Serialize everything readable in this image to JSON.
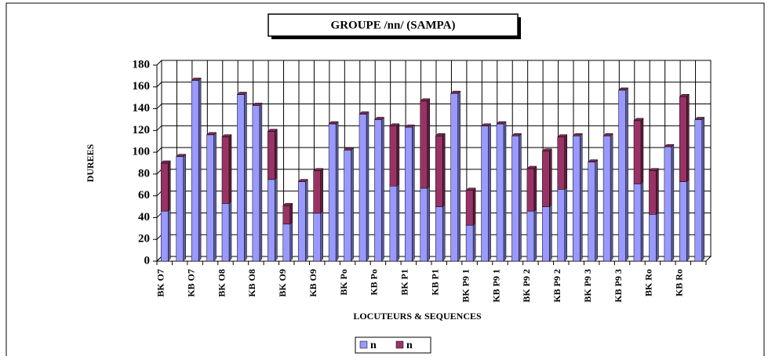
{
  "chart_data": {
    "type": "bar",
    "stacked": true,
    "title": "GROUPE /nn/ (SAMPA)",
    "x_label": "LOCUTEURS & SEQUENCES",
    "y_label": "DUREES",
    "categories": [
      "BK O7",
      null,
      "KB O7",
      null,
      "BK O8",
      null,
      "KB O8",
      null,
      "BK O9",
      null,
      "KB O9",
      null,
      "BK Po",
      null,
      "KB Po",
      null,
      "BK P1",
      null,
      "KB P1",
      null,
      "BK P9 1",
      null,
      "KB P9 1",
      null,
      "BK P9 2",
      null,
      "KB P9 2",
      null,
      "BK P9 3",
      null,
      "KB P9 3",
      null,
      "BK Ro",
      null,
      "KB Ro",
      null
    ],
    "series": [
      {
        "name": "n",
        "color": "#9999ff",
        "values": [
          46,
          96,
          166,
          116,
          53,
          153,
          143,
          75,
          34,
          73,
          44,
          126,
          102,
          135,
          130,
          69,
          123,
          67,
          50,
          154,
          33,
          124,
          126,
          115,
          46,
          50,
          66,
          115,
          91,
          115,
          157,
          71,
          43,
          105,
          73,
          130
        ]
      },
      {
        "name": "n",
        "color": "#993366",
        "values": [
          44,
          0,
          0,
          0,
          61,
          0,
          0,
          44,
          17,
          0,
          39,
          0,
          0,
          0,
          0,
          55,
          0,
          80,
          65,
          0,
          32,
          0,
          0,
          0,
          39,
          51,
          48,
          0,
          0,
          0,
          0,
          58,
          40,
          0,
          78,
          0
        ]
      }
    ],
    "ylim": [
      0,
      180
    ],
    "yticks": [
      0,
      20,
      40,
      60,
      80,
      100,
      120,
      140,
      160,
      180
    ],
    "grid": true
  }
}
